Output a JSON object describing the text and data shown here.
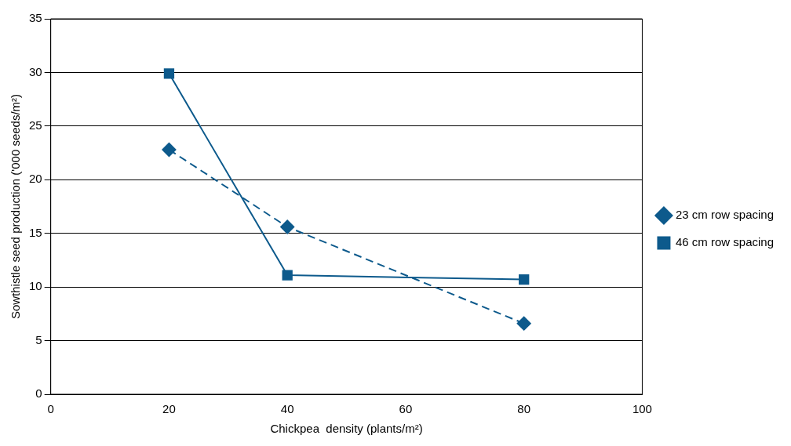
{
  "chart_data": {
    "type": "line",
    "xlabel": "Chickpea  density (plants/m²)",
    "ylabel": "Sowthistle seed production ('000 seeds/m²)",
    "x": [
      20,
      40,
      80
    ],
    "series": [
      {
        "name": "23 cm row spacing",
        "color": "#0d5a8c",
        "values": [
          22.8,
          15.6,
          6.6
        ],
        "marker": "diamond",
        "line_style": "dashed"
      },
      {
        "name": "46 cm row spacing",
        "color": "#0d5a8c",
        "values": [
          29.9,
          11.1,
          10.7
        ],
        "marker": "square",
        "line_style": "solid"
      }
    ],
    "xlim": [
      0,
      100
    ],
    "xticks": [
      0,
      20,
      40,
      60,
      80,
      100
    ],
    "ylim": [
      0,
      35
    ],
    "yticks": [
      0,
      5,
      10,
      15,
      20,
      25,
      30,
      35
    ],
    "grid": "y",
    "legend": "right"
  }
}
